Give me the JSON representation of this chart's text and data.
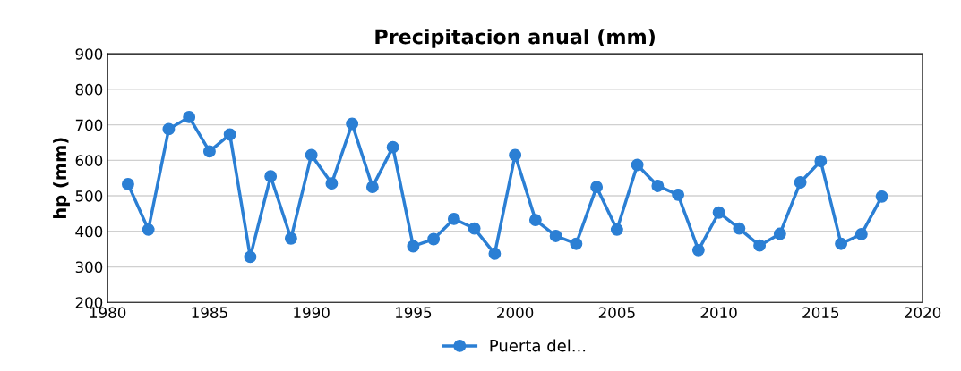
{
  "chart_data": {
    "type": "line",
    "title": "Precipitacion anual (mm)",
    "ylabel": "hp (mm)",
    "x": [
      1981,
      1982,
      1983,
      1984,
      1985,
      1986,
      1987,
      1988,
      1989,
      1990,
      1991,
      1992,
      1993,
      1994,
      1995,
      1996,
      1997,
      1998,
      1999,
      2000,
      2001,
      2002,
      2003,
      2004,
      2005,
      2006,
      2007,
      2008,
      2009,
      2010,
      2011,
      2012,
      2013,
      2014,
      2015,
      2016,
      2017,
      2018
    ],
    "series": [
      {
        "name": "Puerta del...",
        "color": "#2b7fd4",
        "values": [
          533,
          405,
          688,
          722,
          625,
          673,
          328,
          555,
          380,
          615,
          535,
          703,
          525,
          637,
          358,
          378,
          435,
          408,
          337,
          615,
          432,
          387,
          365,
          525,
          405,
          587,
          528,
          503,
          347,
          453,
          408,
          360,
          393,
          538,
          598,
          365,
          392,
          498
        ]
      }
    ],
    "xlim": [
      1980,
      2020
    ],
    "xticks": [
      1980,
      1985,
      1990,
      1995,
      2000,
      2005,
      2010,
      2015,
      2020
    ],
    "ylim": [
      200,
      900
    ],
    "yticks": [
      200,
      300,
      400,
      500,
      600,
      700,
      800,
      900
    ],
    "grid": "y",
    "legend": "bottom",
    "marker": "circle",
    "line_style": "solid"
  }
}
